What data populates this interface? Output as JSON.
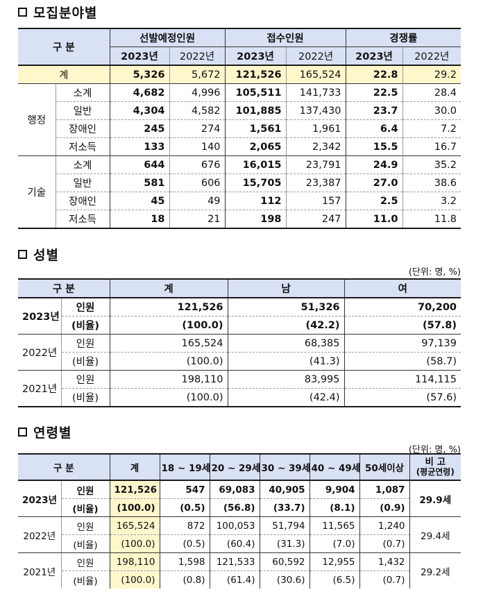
{
  "section1": {
    "title": "모집분야별",
    "header": {
      "category": "구 분",
      "groups": [
        "선발예정인원",
        "접수인원",
        "경쟁률"
      ],
      "years": [
        "2023년",
        "2022년"
      ]
    },
    "total": {
      "label": "계",
      "values": [
        "5,326",
        "5,672",
        "121,526",
        "165,524",
        "22.8",
        "29.2"
      ]
    },
    "groups": [
      {
        "name": "행정",
        "rows": [
          {
            "label": "소계",
            "values": [
              "4,682",
              "4,996",
              "105,511",
              "141,733",
              "22.5",
              "28.4"
            ]
          },
          {
            "label": "일반",
            "values": [
              "4,304",
              "4,582",
              "101,885",
              "137,430",
              "23.7",
              "30.0"
            ]
          },
          {
            "label": "장애인",
            "values": [
              "245",
              "274",
              "1,561",
              "1,961",
              "6.4",
              "7.2"
            ]
          },
          {
            "label": "저소득",
            "values": [
              "133",
              "140",
              "2,065",
              "2,342",
              "15.5",
              "16.7"
            ]
          }
        ]
      },
      {
        "name": "기술",
        "rows": [
          {
            "label": "소계",
            "values": [
              "644",
              "676",
              "16,015",
              "23,791",
              "24.9",
              "35.2"
            ]
          },
          {
            "label": "일반",
            "values": [
              "581",
              "606",
              "15,705",
              "23,387",
              "27.0",
              "38.6"
            ]
          },
          {
            "label": "장애인",
            "values": [
              "45",
              "49",
              "112",
              "157",
              "2.5",
              "3.2"
            ]
          },
          {
            "label": "저소득",
            "values": [
              "18",
              "21",
              "198",
              "247",
              "11.0",
              "11.8"
            ]
          }
        ]
      }
    ]
  },
  "section2": {
    "title": "성별",
    "unit": "(단위: 명, %)",
    "header": [
      "구 분",
      "계",
      "남",
      "여"
    ],
    "years": [
      {
        "year": "2023년",
        "rows": [
          {
            "label": "인원",
            "values": [
              "121,526",
              "51,326",
              "70,200"
            ]
          },
          {
            "label": "(비율)",
            "values": [
              "(100.0)",
              "(42.2)",
              "(57.8)"
            ]
          }
        ]
      },
      {
        "year": "2022년",
        "rows": [
          {
            "label": "인원",
            "values": [
              "165,524",
              "68,385",
              "97,139"
            ]
          },
          {
            "label": "(비율)",
            "values": [
              "(100.0)",
              "(41.3)",
              "(58.7)"
            ]
          }
        ]
      },
      {
        "year": "2021년",
        "rows": [
          {
            "label": "인원",
            "values": [
              "198,110",
              "83,995",
              "114,115"
            ]
          },
          {
            "label": "(비율)",
            "values": [
              "(100.0)",
              "(42.4)",
              "(57.6)"
            ]
          }
        ]
      }
    ]
  },
  "section3": {
    "title": "연령별",
    "unit": "(단위: 명, %)",
    "header": [
      "구 분",
      "계",
      "18 ~ 19세",
      "20 ~ 29세",
      "30 ~ 39세",
      "40 ~ 49세",
      "50세이상"
    ],
    "remark_title": "비 고",
    "remark_sub": "(평균연령)",
    "years": [
      {
        "year": "2023년",
        "avg": "29.9세",
        "rows": [
          {
            "label": "인원",
            "values": [
              "121,526",
              "547",
              "69,083",
              "40,905",
              "9,904",
              "1,087"
            ]
          },
          {
            "label": "(비율)",
            "values": [
              "(100.0)",
              "(0.5)",
              "(56.8)",
              "(33.7)",
              "(8.1)",
              "(0.9)"
            ]
          }
        ]
      },
      {
        "year": "2022년",
        "avg": "29.4세",
        "rows": [
          {
            "label": "인원",
            "values": [
              "165,524",
              "872",
              "100,053",
              "51,794",
              "11,565",
              "1,240"
            ]
          },
          {
            "label": "(비율)",
            "values": [
              "(100.0)",
              "(0.5)",
              "(60.4)",
              "(31.3)",
              "(7.0)",
              "(0.7)"
            ]
          }
        ]
      },
      {
        "year": "2021년",
        "avg": "29.2세",
        "rows": [
          {
            "label": "인원",
            "values": [
              "198,110",
              "1,598",
              "121,533",
              "60,592",
              "12,955",
              "1,432"
            ]
          },
          {
            "label": "(비율)",
            "values": [
              "(100.0)",
              "(0.8)",
              "(61.4)",
              "(30.6)",
              "(6.5)",
              "(0.7)"
            ]
          }
        ]
      }
    ]
  }
}
